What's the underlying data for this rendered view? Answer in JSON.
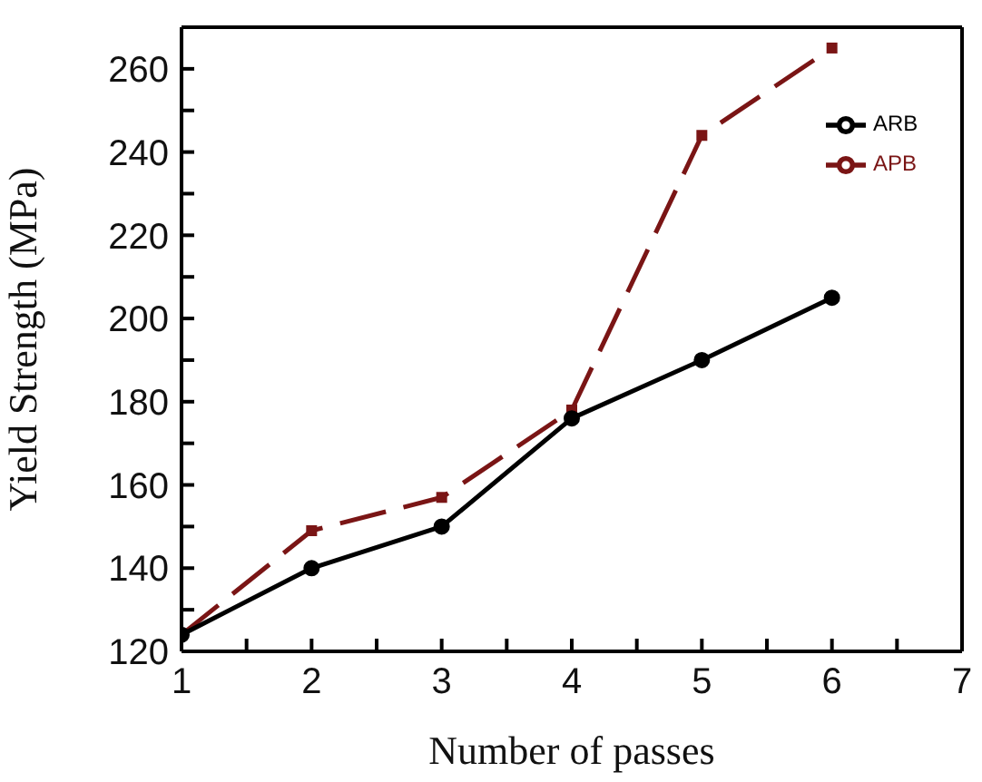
{
  "chart_data": {
    "type": "line",
    "xlabel": "Number of passes",
    "ylabel": "Yield Strength (MPa)",
    "x": [
      1,
      2,
      3,
      4,
      5,
      6
    ],
    "series": [
      {
        "name": "ARB",
        "color": "#000000",
        "values": [
          124,
          140,
          150,
          176,
          190,
          205
        ],
        "marker": "circle",
        "line_style": "solid"
      },
      {
        "name": "APB",
        "color": "#7a1515",
        "values": [
          124,
          149,
          157,
          178,
          244,
          265
        ],
        "marker": "square",
        "line_style": "dashed"
      }
    ],
    "xlim": [
      1,
      7
    ],
    "xticks": [
      1,
      {
        "value": 1.5,
        "label": null
      },
      2,
      {
        "value": 2.5,
        "label": null
      },
      3,
      {
        "value": 3.5,
        "label": null
      },
      4,
      {
        "value": 4.5,
        "label": null
      },
      5,
      {
        "value": 5.5,
        "label": null
      },
      6,
      {
        "value": 6.5,
        "label": null
      },
      7
    ],
    "ylim": [
      120,
      270
    ],
    "yticks": [
      120,
      {
        "value": 130,
        "label": null
      },
      140,
      {
        "value": 150,
        "label": null
      },
      160,
      {
        "value": 170,
        "label": null
      },
      180,
      {
        "value": 190,
        "label": null
      },
      200,
      {
        "value": 210,
        "label": null
      },
      220,
      {
        "value": 230,
        "label": null
      },
      240,
      {
        "value": 250,
        "label": null
      },
      260
    ],
    "grid": false,
    "legend": "top right"
  }
}
